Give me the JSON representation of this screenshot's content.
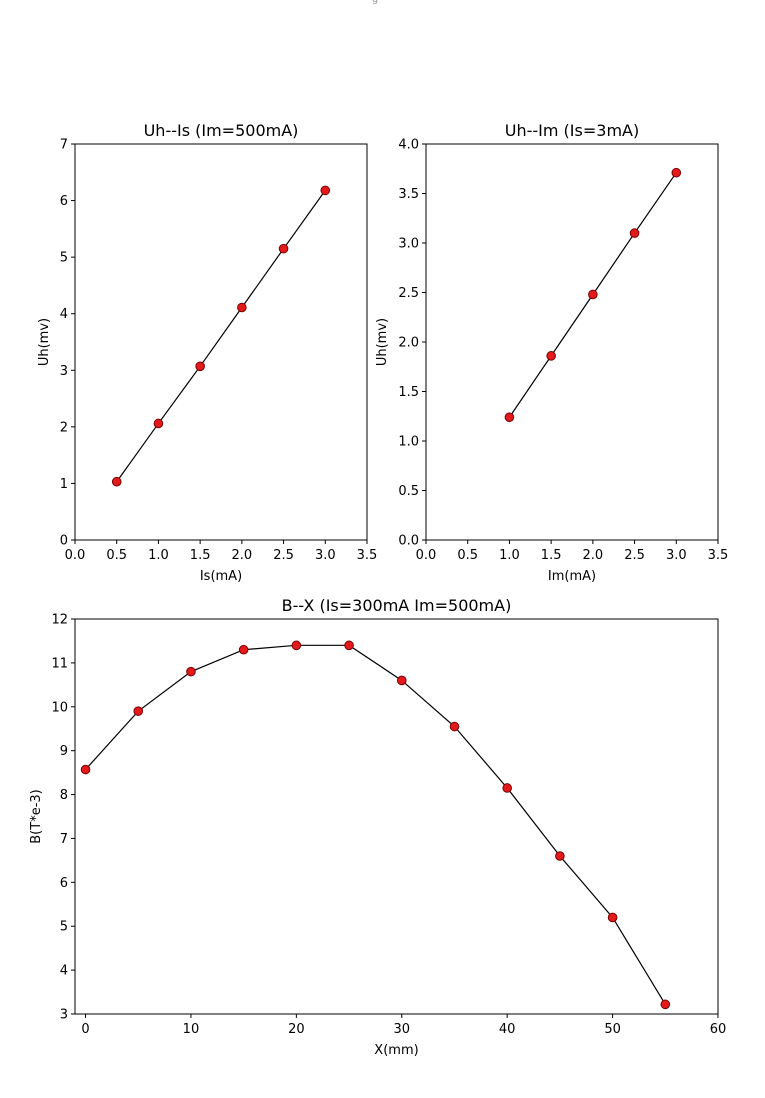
{
  "figure_artifact": "g",
  "chart_data": [
    {
      "type": "line",
      "title": "Uh--Is (Im=500mA)",
      "xlabel": "Is(mA)",
      "ylabel": "Uh(mv)",
      "xlim": [
        0,
        3.5
      ],
      "ylim": [
        0,
        7
      ],
      "xticks": [
        "0.0",
        "0.5",
        "1.0",
        "1.5",
        "2.0",
        "2.5",
        "3.0",
        "3.5"
      ],
      "xtick_values": [
        0,
        0.5,
        1.0,
        1.5,
        2.0,
        2.5,
        3.0,
        3.5
      ],
      "yticks": [
        "0",
        "1",
        "2",
        "3",
        "4",
        "5",
        "6",
        "7"
      ],
      "ytick_values": [
        0,
        1,
        2,
        3,
        4,
        5,
        6,
        7
      ],
      "grid": false,
      "marker_color": "#e31a1c",
      "line_color": "#000000",
      "x": [
        0.5,
        1.0,
        1.5,
        2.0,
        2.5,
        3.0
      ],
      "y": [
        1.03,
        2.06,
        3.07,
        4.11,
        5.15,
        6.18
      ]
    },
    {
      "type": "line",
      "title": "Uh--Im (Is=3mA)",
      "xlabel": "Im(mA)",
      "ylabel": "Uh(mv)",
      "xlim": [
        0,
        3.5
      ],
      "ylim": [
        0,
        4.0
      ],
      "xticks": [
        "0.0",
        "0.5",
        "1.0",
        "1.5",
        "2.0",
        "2.5",
        "3.0",
        "3.5"
      ],
      "xtick_values": [
        0,
        0.5,
        1.0,
        1.5,
        2.0,
        2.5,
        3.0,
        3.5
      ],
      "yticks": [
        "0.0",
        "0.5",
        "1.0",
        "1.5",
        "2.0",
        "2.5",
        "3.0",
        "3.5",
        "4.0"
      ],
      "ytick_values": [
        0,
        0.5,
        1.0,
        1.5,
        2.0,
        2.5,
        3.0,
        3.5,
        4.0
      ],
      "grid": false,
      "marker_color": "#e31a1c",
      "line_color": "#000000",
      "x": [
        1.0,
        1.5,
        2.0,
        2.5,
        3.0
      ],
      "y": [
        1.24,
        1.86,
        2.48,
        3.1,
        3.71
      ]
    },
    {
      "type": "line",
      "title": "B--X (Is=300mA Im=500mA)",
      "xlabel": "X(mm)",
      "ylabel": "B(T*e-3)",
      "xlim": [
        -1,
        60
      ],
      "ylim": [
        3,
        12
      ],
      "xticks": [
        "0",
        "10",
        "20",
        "30",
        "40",
        "50",
        "60"
      ],
      "xtick_values": [
        0,
        10,
        20,
        30,
        40,
        50,
        60
      ],
      "yticks": [
        "3",
        "4",
        "5",
        "6",
        "7",
        "8",
        "9",
        "10",
        "11",
        "12"
      ],
      "ytick_values": [
        3,
        4,
        5,
        6,
        7,
        8,
        9,
        10,
        11,
        12
      ],
      "grid": false,
      "marker_color": "#e31a1c",
      "line_color": "#000000",
      "x": [
        0,
        5,
        10,
        15,
        20,
        25,
        30,
        35,
        40,
        45,
        50,
        55
      ],
      "y": [
        8.57,
        9.9,
        10.8,
        11.3,
        11.4,
        11.4,
        10.6,
        9.55,
        8.15,
        6.6,
        5.2,
        3.22
      ]
    }
  ]
}
